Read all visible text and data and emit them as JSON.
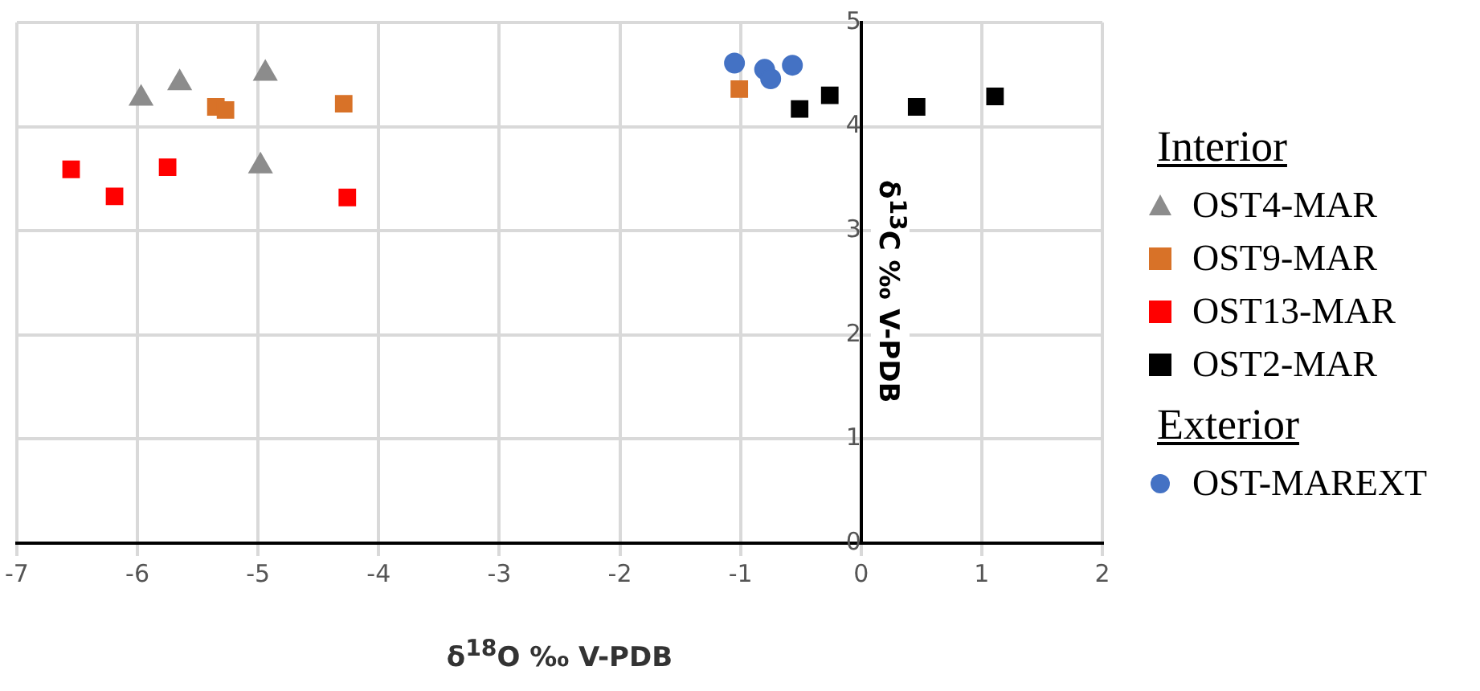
{
  "chart_data": {
    "type": "scatter",
    "xlabel": "δ$^{18}$O  ‰ V-PDB",
    "ylabel": "δ$^{13}$C ‰ V-PDB",
    "xlim": [
      -7,
      2
    ],
    "xticks": [
      -7,
      -6,
      -5,
      -4,
      -3,
      -2,
      -1,
      0,
      1,
      2
    ],
    "ylim": [
      0,
      5
    ],
    "yticks": [
      0,
      1,
      2,
      3,
      4,
      5
    ],
    "grid": true,
    "legend": "right",
    "annotations": [
      "Interior",
      "Exterior"
    ],
    "series": [
      {
        "name": "OST4-MAR",
        "color": "#8c8c8c",
        "marker": "triangle",
        "x": [
          -5.97,
          -5.65,
          -4.94,
          -4.98
        ],
        "values": [
          4.27,
          4.42,
          4.51,
          3.62
        ]
      },
      {
        "name": "OST9-MAR",
        "color": "#d87228",
        "marker": "square",
        "x": [
          -5.35,
          -5.27,
          -4.29,
          -1.01
        ],
        "values": [
          4.19,
          4.16,
          4.22,
          4.36
        ]
      },
      {
        "name": "OST13-MAR",
        "color": "#ff0000",
        "marker": "square",
        "x": [
          -6.55,
          -6.19,
          -5.75,
          -4.26
        ],
        "values": [
          3.59,
          3.33,
          3.61,
          3.32
        ]
      },
      {
        "name": "OST2-MAR",
        "color": "#000000",
        "marker": "square",
        "x": [
          -0.51,
          -0.26,
          0.46,
          1.11
        ],
        "values": [
          4.17,
          4.3,
          4.19,
          4.29
        ]
      },
      {
        "name": "OST-MAREXT",
        "color": "#4472c4",
        "marker": "circle",
        "x": [
          -1.05,
          -0.8,
          -0.75,
          -0.57
        ],
        "values": [
          4.61,
          4.55,
          4.46,
          4.59
        ]
      }
    ]
  }
}
